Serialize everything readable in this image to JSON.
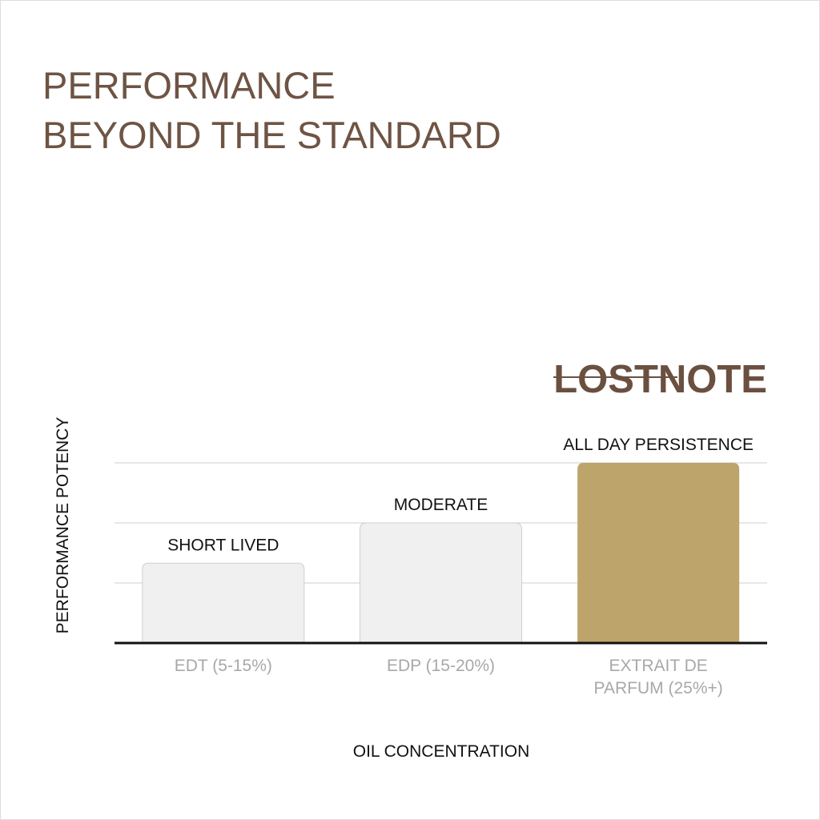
{
  "chart_data": {
    "type": "bar",
    "title_lines": [
      "PERFORMANCE",
      "BEYOND THE STANDARD"
    ],
    "brand": "LOSTNOTE",
    "y_label": "PERFORMANCE POTENCY",
    "x_label": "OIL CONCENTRATION",
    "categories": [
      "EDT (5-15%)",
      "EDP (15-20%)",
      "EXTRAIT DE PARFUM (25%+)"
    ],
    "values": [
      1.33,
      2,
      3
    ],
    "bar_labels": [
      "SHORT LIVED",
      "MODERATE",
      "ALL DAY PERSISTENCE"
    ],
    "colors": [
      "#f0f0f0",
      "#f0f0f0",
      "#bda46a"
    ],
    "ylim": [
      0,
      3
    ],
    "yticks": [
      1,
      2,
      3
    ],
    "grid": true
  }
}
